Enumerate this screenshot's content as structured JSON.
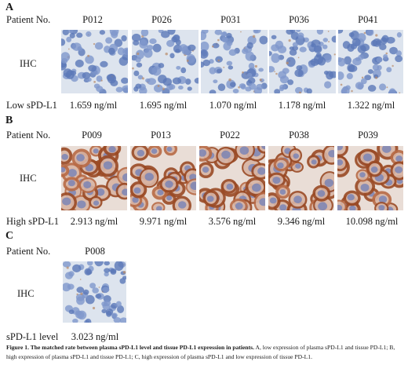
{
  "panels": [
    {
      "letter": "A",
      "row_label": "Patient No.",
      "ihc_label": "IHC",
      "level_label": "Low sPD-L1",
      "patients": [
        "P012",
        "P026",
        "P031",
        "P036",
        "P041"
      ],
      "values": [
        "1.659 ng/ml",
        "1.695 ng/ml",
        "1.070 ng/ml",
        "1.178 ng/ml",
        "1.322 ng/ml"
      ],
      "staining": "low"
    },
    {
      "letter": "B",
      "row_label": "Patient No.",
      "ihc_label": "IHC",
      "level_label": "High sPD-L1",
      "patients": [
        "P009",
        "P013",
        "P022",
        "P038",
        "P039"
      ],
      "values": [
        "2.913 ng/ml",
        "9.971 ng/ml",
        "3.576 ng/ml",
        "9.346 ng/ml",
        "10.098 ng/ml"
      ],
      "staining": "high"
    },
    {
      "letter": "C",
      "row_label": "Patient No.",
      "ihc_label": "IHC",
      "level_label": "sPD-L1 level",
      "patients": [
        "P008"
      ],
      "values": [
        "3.023 ng/ml"
      ],
      "staining": "low"
    }
  ],
  "caption": {
    "bold": "Figure 1. The matched rate between plasma sPD-L1 level and tissue PD-L1 expression in patients.",
    "text": "A, low expression of plasma sPD-L1 and tissue PD-L1; B, high expression of plasma sPD-L1 and tissue PD-L1; C, high expression of plasma sPD-L1 and low expression of tissue PD-L1."
  },
  "colors": {
    "nucleus": "#5b78b8",
    "background": "#dde4ee",
    "membrane_stain": "#9a4a25"
  }
}
